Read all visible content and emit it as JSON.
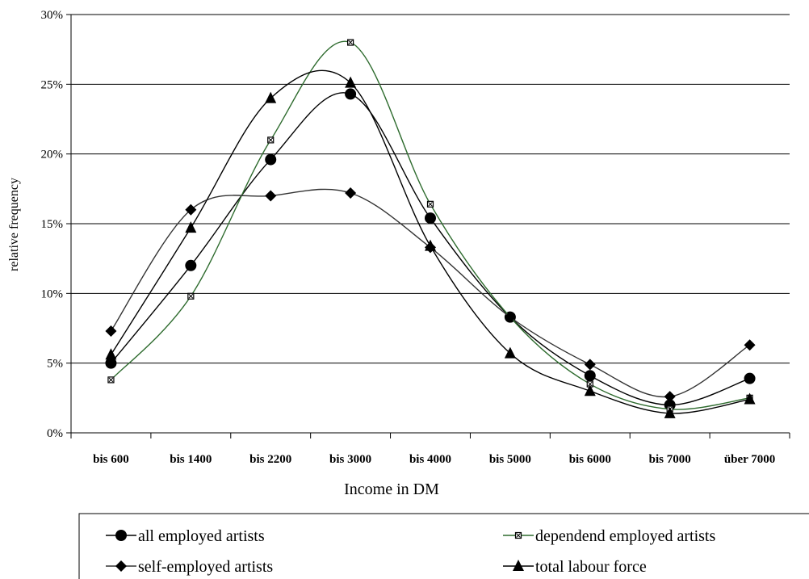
{
  "chart_data": {
    "type": "line",
    "xlabel": "Income in DM",
    "ylabel": "relative frequency",
    "categories": [
      "bis 600",
      "bis 1400",
      "bis 2200",
      "bis 3000",
      "bis 4000",
      "bis 5000",
      "bis 6000",
      "bis 7000",
      "über 7000"
    ],
    "ylim": [
      0,
      0.3
    ],
    "yticks": [
      "0%",
      "5%",
      "10%",
      "15%",
      "20%",
      "25%",
      "30%"
    ],
    "grid": "horizontal",
    "smoothed": true,
    "legend_position": "bottom",
    "series": [
      {
        "name": "all employed artists",
        "marker": "circle",
        "color": "#000000",
        "values": [
          0.05,
          0.12,
          0.196,
          0.243,
          0.154,
          0.083,
          0.041,
          0.02,
          0.039
        ]
      },
      {
        "name": "dependend employed artists",
        "marker": "square",
        "color": "#2e6b2e",
        "values": [
          0.038,
          0.098,
          0.21,
          0.28,
          0.164,
          0.083,
          0.035,
          0.017,
          0.025
        ]
      },
      {
        "name": "self-employed artists",
        "marker": "diamond",
        "color": "#333333",
        "values": [
          0.073,
          0.16,
          0.17,
          0.172,
          0.133,
          0.083,
          0.049,
          0.026,
          0.063
        ]
      },
      {
        "name": "total labour force",
        "marker": "triangle",
        "color": "#000000",
        "values": [
          0.056,
          0.147,
          0.24,
          0.251,
          0.134,
          0.057,
          0.03,
          0.014,
          0.024
        ]
      }
    ]
  }
}
